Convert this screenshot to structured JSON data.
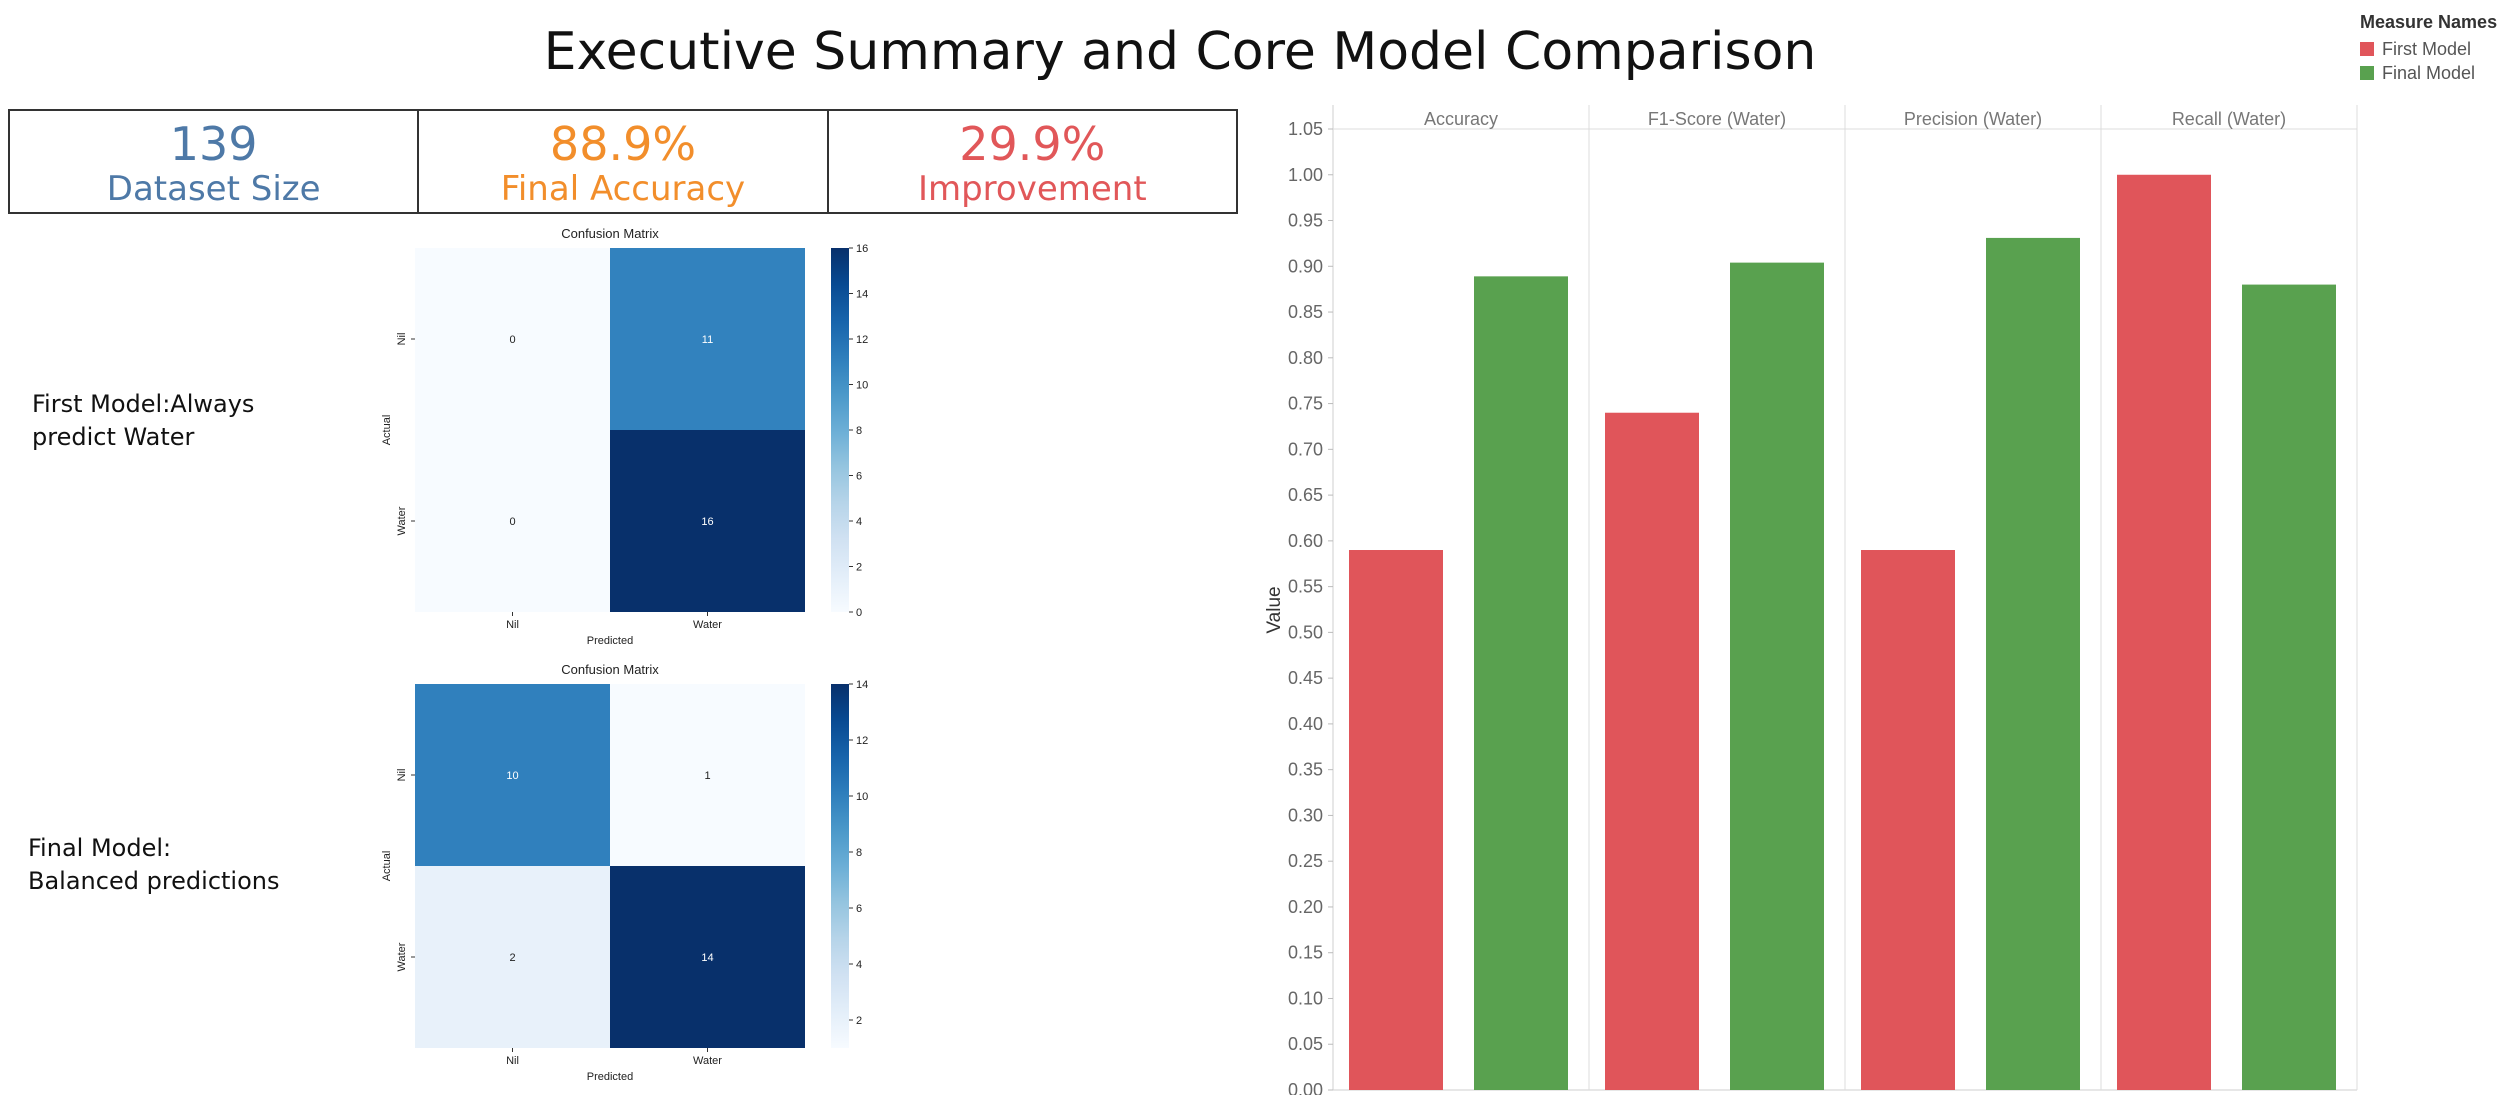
{
  "title": "Executive Summary and Core Model Comparison",
  "legend": {
    "title": "Measure Names",
    "items": [
      {
        "label": "First Model",
        "color": "#e0555a"
      },
      {
        "label": "Final Model",
        "color": "#59a14f"
      }
    ]
  },
  "kpis": [
    {
      "value": "139",
      "label": "Dataset Size",
      "color": "#4e79a7"
    },
    {
      "value": "88.9%",
      "label": "Final Accuracy",
      "color": "#f28e2b"
    },
    {
      "value": "29.9%",
      "label": "Improvement",
      "color": "#e15759"
    }
  ],
  "model_labels": {
    "first": [
      "First Model:Always",
      "predict Water"
    ],
    "final": [
      "Final Model:",
      "Balanced predictions"
    ]
  },
  "chart_data": [
    {
      "type": "heatmap",
      "title": "Confusion Matrix",
      "xlabel": "Predicted",
      "ylabel": "Actual",
      "x_categories": [
        "Nil",
        "Water"
      ],
      "y_categories": [
        "Nil",
        "Water"
      ],
      "values": [
        [
          0,
          11
        ],
        [
          0,
          16
        ]
      ],
      "colorbar": {
        "min": 0,
        "max": 16,
        "ticks": [
          0,
          2,
          4,
          6,
          8,
          10,
          12,
          14,
          16
        ]
      }
    },
    {
      "type": "heatmap",
      "title": "Confusion Matrix",
      "xlabel": "Predicted",
      "ylabel": "Actual",
      "x_categories": [
        "Nil",
        "Water"
      ],
      "y_categories": [
        "Nil",
        "Water"
      ],
      "values": [
        [
          10,
          1
        ],
        [
          2,
          14
        ]
      ],
      "colorbar": {
        "min": 1,
        "max": 14,
        "ticks": [
          2,
          4,
          6,
          8,
          10,
          12,
          14
        ]
      }
    },
    {
      "type": "bar",
      "categories": [
        "Accuracy",
        "F1-Score (Water)",
        "Precision (Water)",
        "Recall (Water)"
      ],
      "series": [
        {
          "name": "First Model",
          "values": [
            0.59,
            0.74,
            0.59,
            1.0
          ],
          "color": "#e0555a"
        },
        {
          "name": "Final Model",
          "values": [
            0.889,
            0.904,
            0.931,
            0.88
          ],
          "color": "#59a14f"
        }
      ],
      "ylabel": "Value",
      "ylim": [
        0,
        1.05
      ],
      "yticks": [
        "0.00",
        "0.05",
        "0.10",
        "0.15",
        "0.20",
        "0.25",
        "0.30",
        "0.35",
        "0.40",
        "0.45",
        "0.50",
        "0.55",
        "0.60",
        "0.65",
        "0.70",
        "0.75",
        "0.80",
        "0.85",
        "0.90",
        "0.95",
        "1.00",
        "1.05"
      ],
      "grid": false,
      "legend_position": "top-right"
    }
  ]
}
